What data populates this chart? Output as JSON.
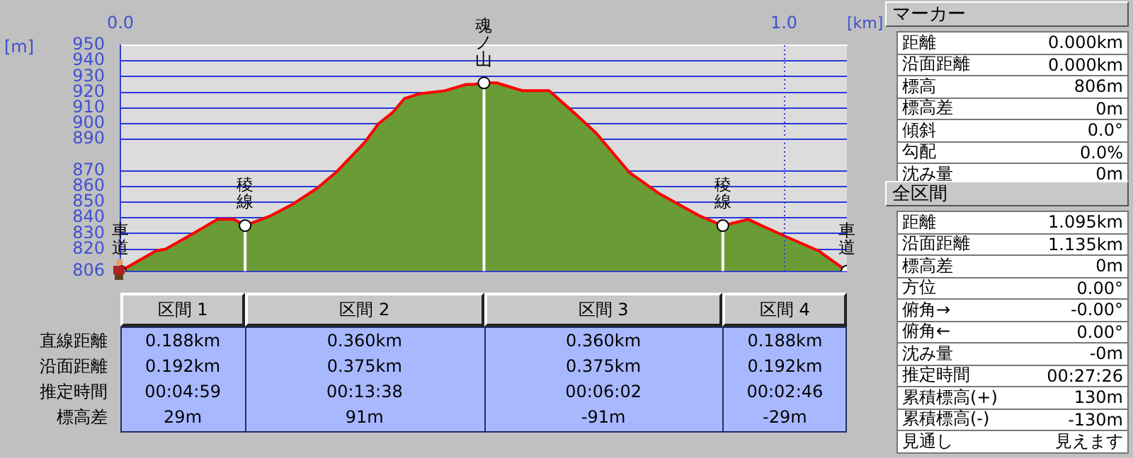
{
  "chart_data": [
    {
      "type": "area",
      "xlabel": "[km]",
      "ylabel": "[m]",
      "xlim": [
        0,
        1.095
      ],
      "xticks": [
        {
          "value": 0,
          "label": "0.0"
        },
        {
          "value": 1,
          "label": "1.0"
        }
      ],
      "ylim": [
        806,
        950
      ],
      "yticks": [
        806,
        820,
        830,
        840,
        850,
        860,
        870,
        890,
        900,
        910,
        920,
        930,
        940,
        950
      ],
      "grid": "y",
      "legend": false,
      "ref_lines": [
        {
          "axis": "x",
          "value": 1,
          "color": "#3040d0",
          "line_style": "dotted"
        }
      ],
      "series": [
        {
          "type": "area",
          "color": "#6b9b35",
          "marker": "none",
          "x": [
            0,
            0.054,
            0.068,
            0.11,
            0.146,
            0.171,
            0.188,
            0.225,
            0.261,
            0.297,
            0.325,
            0.368,
            0.389,
            0.41,
            0.428,
            0.45,
            0.489,
            0.521,
            0.532,
            0.548,
            0.567,
            0.606,
            0.646,
            0.689,
            0.717,
            0.767,
            0.81,
            0.874,
            0.908,
            0.946,
            1.003,
            1.052,
            1.095
          ],
          "values": [
            806,
            819,
            820,
            830,
            839,
            839,
            835,
            841,
            849,
            859,
            869,
            888,
            900,
            907,
            916,
            919,
            921,
            925,
            925,
            926,
            926,
            921,
            921,
            905,
            894,
            869,
            856,
            841,
            835,
            839,
            828,
            819,
            806
          ]
        },
        {
          "type": "lollipop",
          "color": "#ffffff",
          "marker": "circle",
          "x": [
            0,
            0.188,
            0.548,
            0.908,
            1.095
          ],
          "values": [
            806,
            835,
            926,
            835,
            806
          ]
        }
      ],
      "annotations": [
        {
          "text": "車道",
          "x": 0,
          "y": 806
        },
        {
          "text": "稜線",
          "x": 0.188,
          "y": 835
        },
        {
          "text": "魂ノ山",
          "x": 0.548,
          "y": 926
        },
        {
          "text": "稜線",
          "x": 0.908,
          "y": 835
        },
        {
          "text": "車道",
          "x": 1.095,
          "y": 806
        }
      ]
    },
    {
      "type": "other",
      "categories": [
        "区間 1",
        "区間 2",
        "区間 3",
        "区間 4"
      ],
      "y_categories": [
        "直線距離",
        "沿面距離",
        "推定時間",
        "標高差"
      ],
      "cell_labels": [
        [
          "0.188km",
          "0.360km",
          "0.360km",
          "0.188km"
        ],
        [
          "0.192km",
          "0.375km",
          "0.375km",
          "0.192km"
        ],
        [
          "00:04:59",
          "00:13:38",
          "00:06:02",
          "00:02:46"
        ],
        [
          "29m",
          "91m",
          "-91m",
          "-29m"
        ]
      ]
    },
    {
      "type": "other",
      "title": "マーカー",
      "y_categories": [
        "距離",
        "沿面距離",
        "標高",
        "標高差",
        "傾斜",
        "勾配",
        "沈み量"
      ],
      "cell_labels": [
        [
          "0.000km"
        ],
        [
          "0.000km"
        ],
        [
          "806m"
        ],
        [
          "0m"
        ],
        [
          "0.0°"
        ],
        [
          "0.0%"
        ],
        [
          "0m"
        ]
      ]
    },
    {
      "type": "other",
      "title": "全区間",
      "y_categories": [
        "距離",
        "沿面距離",
        "標高差",
        "方位",
        "俯角→",
        "俯角←",
        "沈み量",
        "推定時間",
        "累積標高(+)",
        "累積標高(-)",
        "見通し"
      ],
      "cell_labels": [
        [
          "1.095km"
        ],
        [
          "1.135km"
        ],
        [
          "0m"
        ],
        [
          "0.00°"
        ],
        [
          "-0.00°"
        ],
        [
          "0.00°"
        ],
        [
          "-0m"
        ],
        [
          "00:27:26"
        ],
        [
          "130m"
        ],
        [
          "-130m"
        ],
        [
          "見えます"
        ]
      ]
    }
  ]
}
